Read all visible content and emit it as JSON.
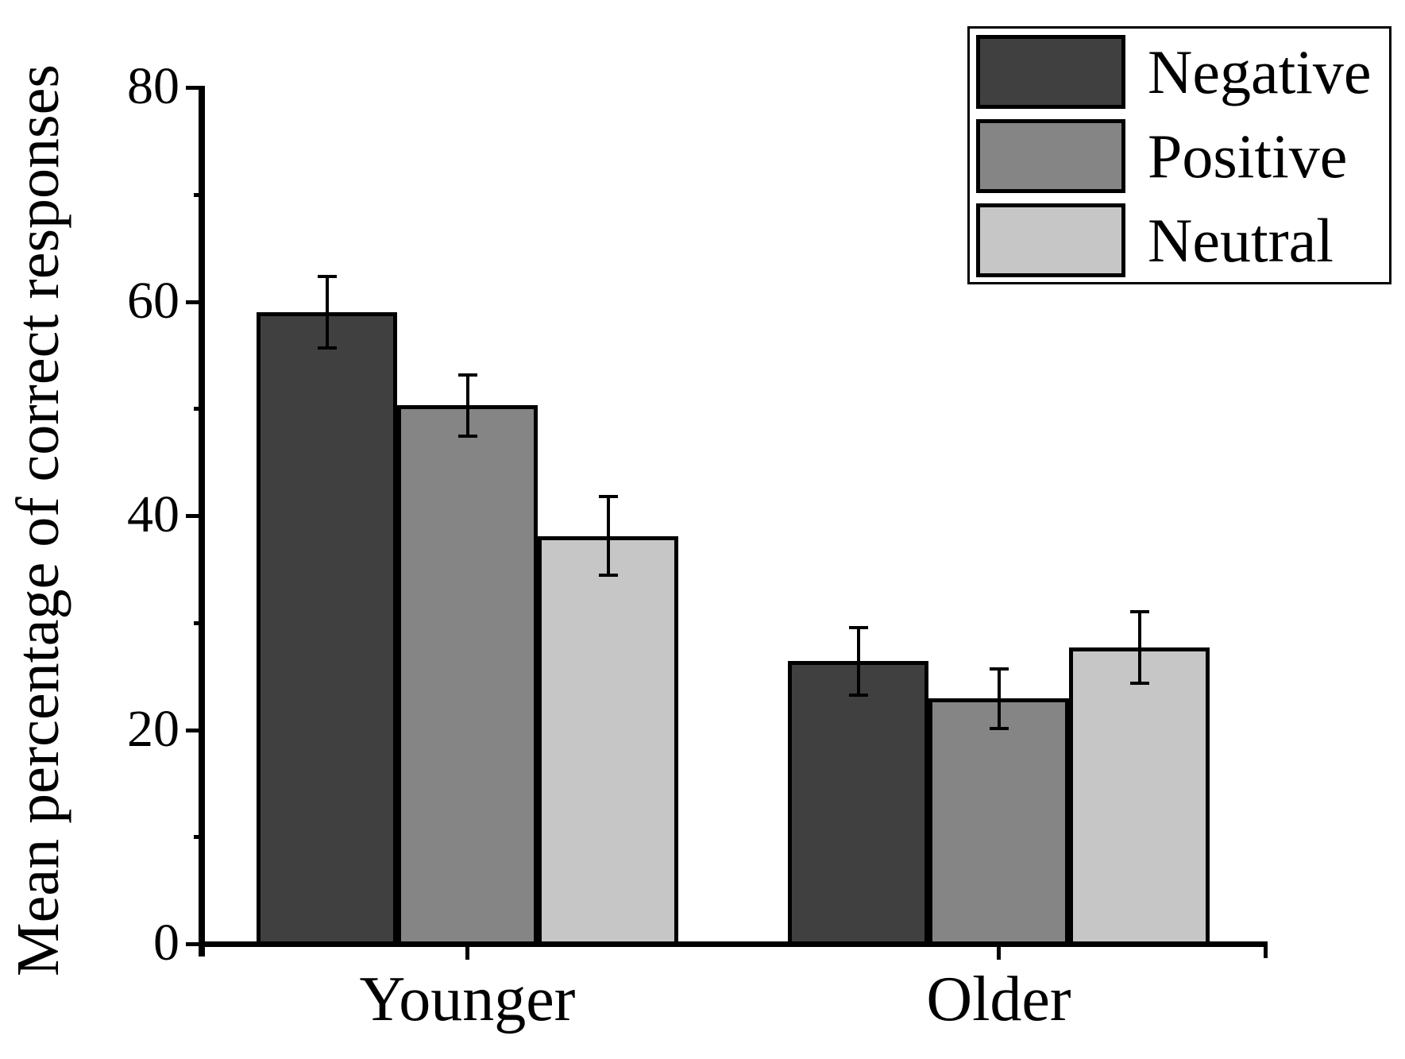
{
  "chart_data": {
    "type": "bar",
    "title": "",
    "xlabel": "",
    "ylabel": "Mean percentage of correct responses",
    "categories": [
      "Younger",
      "Older"
    ],
    "series": [
      {
        "name": "Negative",
        "color": "#404040",
        "values": [
          59.0,
          26.4
        ],
        "errors": [
          3.5,
          3.3
        ]
      },
      {
        "name": "Positive",
        "color": "#858585",
        "values": [
          50.3,
          22.9
        ],
        "errors": [
          3.0,
          2.9
        ]
      },
      {
        "name": "Neutral",
        "color": "#c6c6c6",
        "values": [
          38.1,
          27.7
        ],
        "errors": [
          3.8,
          3.5
        ]
      }
    ],
    "ylim": [
      0,
      80
    ],
    "yticks_major": [
      0,
      20,
      40,
      60,
      80
    ],
    "yticks_minor": [
      10,
      30,
      50,
      70
    ],
    "grid": false,
    "legend_position": "top-right",
    "bar_edge_color": "#000000",
    "error_bar_color": "#000000",
    "axis_color": "#000000",
    "background_color": "#ffffff"
  }
}
